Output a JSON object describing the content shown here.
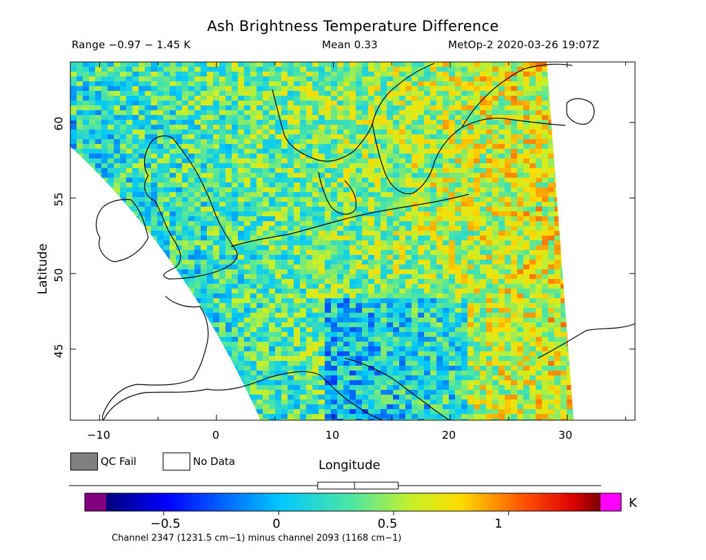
{
  "title": "Ash Brightness Temperature Difference",
  "subtitle": {
    "range": "Range −0.97 − 1.45 K",
    "mean": "Mean 0.33",
    "satellite": "MetOp-2 2020-03-26 19:07Z"
  },
  "axes": {
    "ylabel": "Latitude",
    "xlabel": "Longitude",
    "yticks": [
      "60",
      "55",
      "50",
      "45"
    ],
    "xticks": [
      "−10",
      "0",
      "10",
      "20",
      "30"
    ],
    "lon_range": [
      -12.5,
      35.8
    ],
    "lat_range": [
      40.3,
      64.0
    ]
  },
  "legend": {
    "qc_fail": "QC Fail",
    "no_data": "No Data",
    "qc_fail_color": "#7f7f7f",
    "no_data_color": "#ffffff"
  },
  "colorbar": {
    "unit": "K",
    "ticks": [
      "−0.5",
      "0",
      "0.5",
      "1"
    ],
    "tick_values": [
      -0.5,
      0,
      0.5,
      1
    ],
    "range": [
      -0.75,
      1.4
    ],
    "underflow_color": "#800080",
    "overflow_color": "#ff00ff",
    "mean_marker": 0.33,
    "mean_box": [
      0.17,
      0.52
    ]
  },
  "footnote": "Channel 2347 (1231.5 cm−1) minus channel 2093 (1168 cm−1)"
}
